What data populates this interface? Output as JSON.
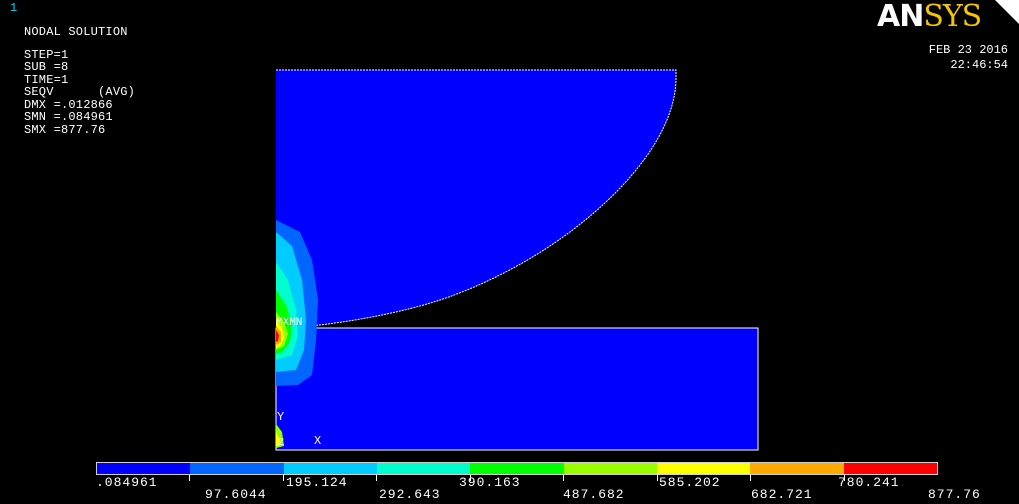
{
  "window": {
    "number": "1",
    "logo_an": "AN",
    "logo_sys": "SYS",
    "date": "FEB 23 2016",
    "time": "22:46:54"
  },
  "solution_info": {
    "title": "NODAL SOLUTION",
    "lines": [
      "STEP=1",
      "SUB =8",
      "TIME=1",
      "SEQV      (AVG)",
      "DMX =.012866",
      "SMN =.084961",
      "SMX =877.76"
    ]
  },
  "model_labels": {
    "mx_mn": "MXMN",
    "axis_y": "Y",
    "axis_z": "Z",
    "axis_x": "X"
  },
  "legend": {
    "colors": [
      "#0000ff",
      "#0066ff",
      "#00ccff",
      "#00ffcc",
      "#00ff00",
      "#99ff00",
      "#ffff00",
      "#ffaa00",
      "#ff0000"
    ],
    "upper_labels": [
      ".084961",
      "195.124",
      "390.163",
      "585.202",
      "780.241"
    ],
    "lower_labels": [
      "97.6044",
      "292.643",
      "487.682",
      "682.721",
      "877.76"
    ]
  }
}
